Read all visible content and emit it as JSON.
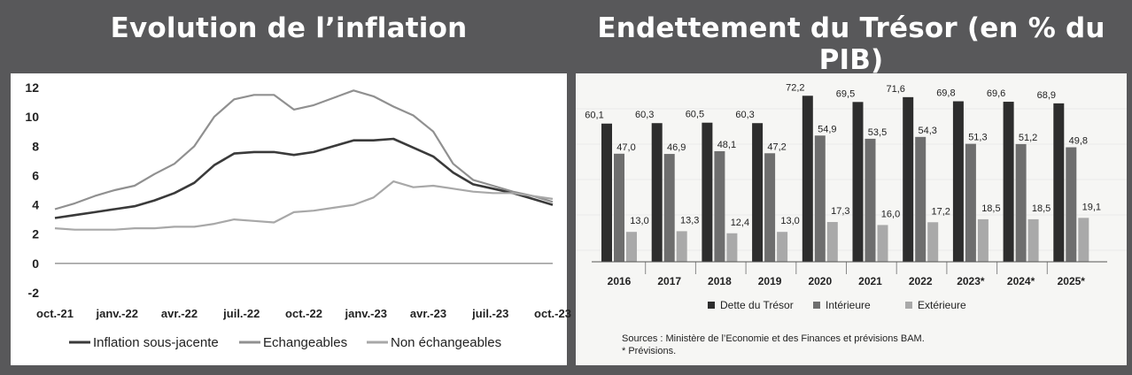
{
  "titles": {
    "left": "Evolution de l’inflation",
    "right": "Endettement du Trésor (en % du PIB)"
  },
  "chart_data": [
    {
      "type": "line",
      "title": "Evolution de l’inflation",
      "x_tick_labels": [
        "oct.-21",
        "janv.-22",
        "avr.-22",
        "juil.-22",
        "oct.-22",
        "janv.-23",
        "avr.-23",
        "juil.-23",
        "oct.-23"
      ],
      "y_ticks": [
        "12",
        "10",
        "8",
        "6",
        "4",
        "2",
        "0",
        "-2"
      ],
      "ylim": [
        -2,
        12
      ],
      "series": [
        {
          "name": "Inflation sous-jacente",
          "color": "#3a3a3a",
          "values": [
            3.1,
            3.3,
            3.5,
            3.7,
            3.9,
            4.3,
            4.8,
            5.5,
            6.7,
            7.5,
            7.6,
            7.6,
            7.4,
            7.6,
            8.0,
            8.4,
            8.4,
            8.5,
            7.9,
            7.3,
            6.2,
            5.4,
            5.1,
            4.8,
            4.4,
            4.0
          ]
        },
        {
          "name": "Echangeables",
          "color": "#909090",
          "values": [
            3.7,
            4.1,
            4.6,
            5.0,
            5.3,
            6.1,
            6.8,
            8.0,
            10.0,
            11.2,
            11.5,
            11.5,
            10.5,
            10.8,
            11.3,
            11.8,
            11.4,
            10.7,
            10.1,
            9.0,
            6.8,
            5.7,
            5.3,
            4.9,
            4.6,
            4.2
          ]
        },
        {
          "name": "Non échangeables",
          "color": "#a8a8a8",
          "values": [
            2.4,
            2.3,
            2.3,
            2.3,
            2.4,
            2.4,
            2.5,
            2.5,
            2.7,
            3.0,
            2.9,
            2.8,
            3.5,
            3.6,
            3.8,
            4.0,
            4.5,
            5.6,
            5.2,
            5.3,
            5.1,
            4.9,
            4.8,
            4.8,
            4.6,
            4.4
          ]
        }
      ],
      "legend": {
        "position": "bottom",
        "entries": [
          "Inflation sous-jacente",
          "Echangeables",
          "Non échangeables"
        ]
      }
    },
    {
      "type": "bar",
      "title": "Endettement du Trésor (en % du PIB)",
      "categories": [
        "2016",
        "2017",
        "2018",
        "2019",
        "2020",
        "2021",
        "2022",
        "2023*",
        "2024*",
        "2025*"
      ],
      "series": [
        {
          "name": "Dette du Trésor",
          "color": "#2d2d2d",
          "values": [
            60.1,
            60.3,
            60.5,
            60.3,
            72.2,
            69.5,
            71.6,
            69.8,
            69.6,
            68.9
          ],
          "labels": [
            "60,1",
            "60,3",
            "60,5",
            "60,3",
            "72,2",
            "69,5",
            "71,6",
            "69,8",
            "69,6",
            "68,9"
          ]
        },
        {
          "name": "Intérieure",
          "color": "#6e6e6e",
          "values": [
            47.0,
            46.9,
            48.1,
            47.2,
            54.9,
            53.5,
            54.3,
            51.3,
            51.2,
            49.8
          ],
          "labels": [
            "47,0",
            "46,9",
            "48,1",
            "47,2",
            "54,9",
            "53,5",
            "54,3",
            "51,3",
            "51,2",
            "49,8"
          ]
        },
        {
          "name": "Extérieure",
          "color": "#a9a9a9",
          "values": [
            13.0,
            13.3,
            12.4,
            13.0,
            17.3,
            16.0,
            17.2,
            18.5,
            18.5,
            19.1
          ],
          "labels": [
            "13,0",
            "13,3",
            "12,4",
            "13,0",
            "17,3",
            "16,0",
            "17,2",
            "18,5",
            "18,5",
            "19,1"
          ]
        }
      ],
      "legend": {
        "position": "bottom",
        "entries": [
          "Dette du Trésor",
          "Intérieure",
          "Extérieure"
        ]
      },
      "ylim": [
        0,
        80
      ]
    }
  ],
  "sources": {
    "line1": "Sources : Ministère de l’Economie et des Finances et prévisions BAM.",
    "line2": "* Prévisions."
  }
}
